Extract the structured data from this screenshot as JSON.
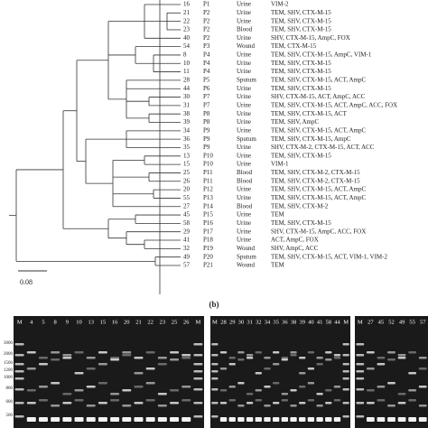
{
  "figure": {
    "panel_label": "(b)",
    "scale_bar": "0.08",
    "rows": [
      {
        "id": "16",
        "patient": "P1",
        "source": "Urine",
        "genes": "VIM-2"
      },
      {
        "id": "21",
        "patient": "P2",
        "source": "Urine",
        "genes": "TEM, SHV, CTX-M-15"
      },
      {
        "id": "22",
        "patient": "P2",
        "source": "Urine",
        "genes": "TEM, SHV, CTX-M-15"
      },
      {
        "id": "23",
        "patient": "P2",
        "source": "Blood",
        "genes": "TEM, SHV, CTX-M-15"
      },
      {
        "id": "40",
        "patient": "P2",
        "source": "Urine",
        "genes": "SHV, CTX-M-15, AmpC, FOX"
      },
      {
        "id": "54",
        "patient": "P3",
        "source": "Wound",
        "genes": "TEM, CTX-M-15"
      },
      {
        "id": "8",
        "patient": "P4",
        "source": "Urine",
        "genes": "TEM, SHV, CTX-M-15, AmpC, VIM-1"
      },
      {
        "id": "10",
        "patient": "P4",
        "source": "Urine",
        "genes": "TEM, SHV, CTX-M-15"
      },
      {
        "id": "11",
        "patient": "P4",
        "source": "Urine",
        "genes": "TEM, SHV, CTX-M-15"
      },
      {
        "id": "28",
        "patient": "P5",
        "source": "Sputum",
        "genes": "TEM, SHV, CTX-M-15, ACT, AmpC"
      },
      {
        "id": "44",
        "patient": "P6",
        "source": "Urine",
        "genes": "TEM, SHV, CTX-M-15"
      },
      {
        "id": "30",
        "patient": "P7",
        "source": "Urine",
        "genes": "SHV, CTX-M-15, ACT, AmpC, ACC"
      },
      {
        "id": "31",
        "patient": "P7",
        "source": "Urine",
        "genes": "TEM, SHV, CTX-M-15, ACT, AmpC, ACC, FOX"
      },
      {
        "id": "38",
        "patient": "P8",
        "source": "Urine",
        "genes": "TEM, SHV, CTX-M-15, ACT"
      },
      {
        "id": "39",
        "patient": "P8",
        "source": "Urine",
        "genes": "TEM, SHV, AmpC"
      },
      {
        "id": "34",
        "patient": "P9",
        "source": "Urine",
        "genes": "TEM, SHV, CTX-M-15, ACT, AmpC"
      },
      {
        "id": "36",
        "patient": "P9",
        "source": "Sputum",
        "genes": "TEM, SHV, CTX-M-15, AmpC"
      },
      {
        "id": "35",
        "patient": "P9",
        "source": "Urine",
        "genes": "SHV, CTX-M-2, CTX-M-15, ACT, ACC"
      },
      {
        "id": "13",
        "patient": "P10",
        "source": "Urine",
        "genes": "TEM, SHV, CTX-M-15"
      },
      {
        "id": "15",
        "patient": "P10",
        "source": "Urine",
        "genes": "VIM-1"
      },
      {
        "id": "25",
        "patient": "P11",
        "source": "Blood",
        "genes": "TEM, SHV, CTX-M-2, CTX-M-15"
      },
      {
        "id": "26",
        "patient": "P11",
        "source": "Blood",
        "genes": "TEM, SHV, CTX-M-2, CTX-M-15"
      },
      {
        "id": "20",
        "patient": "P12",
        "source": "Urine",
        "genes": "TEM, SHV, CTX-M-15, ACT, AmpC"
      },
      {
        "id": "55",
        "patient": "P13",
        "source": "Urine",
        "genes": "TEM, SHV, CTX-M-15, ACT, AmpC"
      },
      {
        "id": "27",
        "patient": "P14",
        "source": "Blood",
        "genes": "TEM, SHV, CTX-M-2"
      },
      {
        "id": "45",
        "patient": "P15",
        "source": "Urine",
        "genes": "TEM"
      },
      {
        "id": "58",
        "patient": "P16",
        "source": "Urine",
        "genes": "TEM, SHV, CTX-M-15"
      },
      {
        "id": "29",
        "patient": "P17",
        "source": "Urine",
        "genes": "SHV, CTX-M-15, AmpC, ACC, FOX"
      },
      {
        "id": "41",
        "patient": "P18",
        "source": "Urine",
        "genes": "ACT, AmpC, FOX"
      },
      {
        "id": "32",
        "patient": "P19",
        "source": "Wound",
        "genes": "SHV, AmpC, ACC"
      },
      {
        "id": "49",
        "patient": "P20",
        "source": "Sputum",
        "genes": "TEM, SHV, CTX-M-15, ACT, VIM-1, VIM-2"
      },
      {
        "id": "57",
        "patient": "P21",
        "source": "Wound",
        "genes": "TEM"
      }
    ],
    "ladder": [
      "3000",
      "2000",
      "1500",
      "1200",
      "1000",
      "800",
      "600",
      "500"
    ],
    "gels": [
      {
        "lanes": [
          "M",
          "4",
          "5",
          "8",
          "9",
          "10",
          "13",
          "15",
          "16",
          "20",
          "21",
          "22",
          "23",
          "25",
          "26",
          "M"
        ]
      },
      {
        "lanes": [
          "M",
          "28",
          "29",
          "30",
          "31",
          "32",
          "34",
          "35",
          "36",
          "38",
          "39",
          "40",
          "41",
          "58",
          "44",
          "M"
        ]
      },
      {
        "lanes": [
          "M",
          "27",
          "45",
          "52",
          "49",
          "55",
          "57"
        ]
      }
    ]
  }
}
